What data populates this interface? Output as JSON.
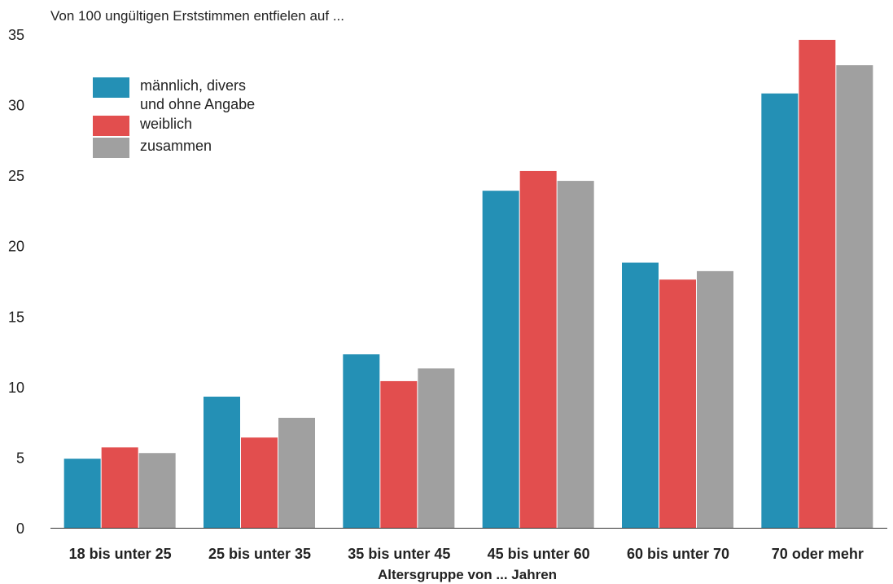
{
  "chart_data": {
    "type": "bar",
    "title": "",
    "subtitle": "Von 100 ungültigen Erststimmen entfielen auf ...",
    "xlabel": "Altersgruppe von ... Jahren",
    "ylabel": "",
    "ylim": [
      0,
      35
    ],
    "yticks": [
      0,
      5,
      10,
      15,
      20,
      25,
      30,
      35
    ],
    "grid": false,
    "legend_position": "top-left",
    "categories": [
      "18 bis unter 25",
      "25 bis unter 35",
      "35 bis unter 45",
      "45 bis unter 60",
      "60 bis unter 70",
      "70 oder mehr"
    ],
    "series": [
      {
        "name": "männlich, divers und ohne Angabe",
        "label_lines": [
          "männlich, divers",
          "und ohne Angabe"
        ],
        "color": "#2490b5",
        "values": [
          4.9,
          9.3,
          12.3,
          23.9,
          18.8,
          30.8
        ]
      },
      {
        "name": "weiblich",
        "label_lines": [
          "weiblich"
        ],
        "color": "#e24e4e",
        "values": [
          5.7,
          6.4,
          10.4,
          25.3,
          17.6,
          34.6
        ]
      },
      {
        "name": "zusammen",
        "label_lines": [
          "zusammen"
        ],
        "color": "#a0a0a0",
        "values": [
          5.3,
          7.8,
          11.3,
          24.6,
          18.2,
          32.8
        ]
      }
    ]
  }
}
